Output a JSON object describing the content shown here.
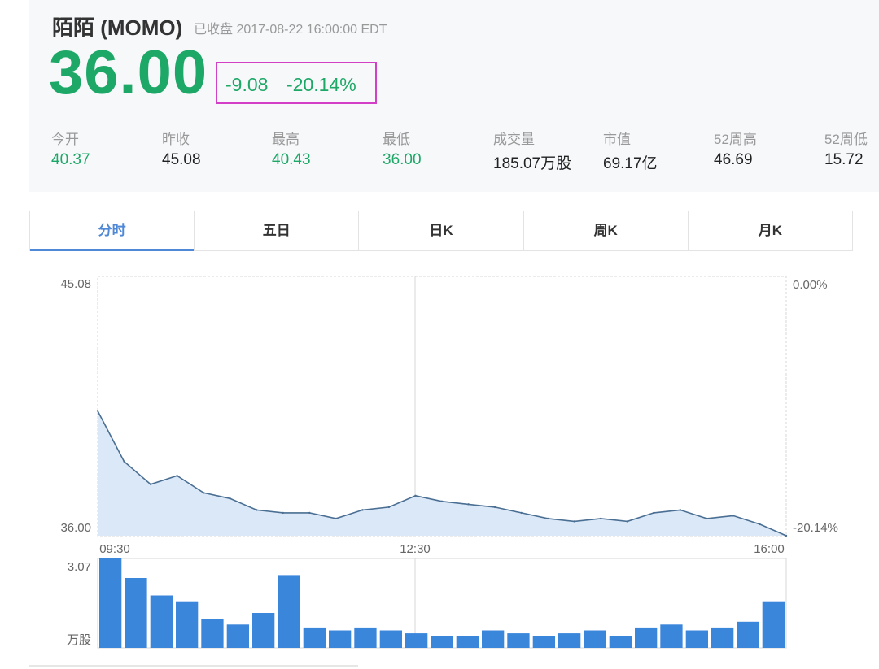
{
  "stock": {
    "name": "陌陌 (MOMO)",
    "status": "已收盘 2017-08-22  16:00:00  EDT",
    "price": "36.00",
    "change": "-9.08",
    "change_pct": "-20.14%"
  },
  "stats": [
    {
      "label": "今开",
      "value": "40.37",
      "color": "green"
    },
    {
      "label": "昨收",
      "value": "45.08",
      "color": "black"
    },
    {
      "label": "最高",
      "value": "40.43",
      "color": "green"
    },
    {
      "label": "最低",
      "value": "36.00",
      "color": "green"
    },
    {
      "label": "成交量",
      "value": "185.07万股",
      "color": "black"
    },
    {
      "label": "市值",
      "value": "69.17亿",
      "color": "black"
    },
    {
      "label": "52周高",
      "value": "46.69",
      "color": "black"
    },
    {
      "label": "52周低",
      "value": "15.72",
      "color": "black"
    }
  ],
  "tabs": [
    "分时",
    "五日",
    "日K",
    "周K",
    "月K"
  ],
  "active_tab": 0,
  "colors": {
    "green": "#1ea868",
    "accent": "#4f88d6",
    "line": "#4a6f93",
    "fill": "#dbe8f8",
    "volume": "#3a86db",
    "highlight_box": "#d33fc6"
  },
  "chart_data": [
    {
      "type": "line",
      "title": "",
      "x_ticks": [
        "09:30",
        "12:30",
        "16:00"
      ],
      "y_left_labels": [
        "45.08",
        "36.00"
      ],
      "y_right_labels": [
        "0.00%",
        "-20.14%"
      ],
      "ylim": [
        36.0,
        45.08
      ],
      "xlabel": "",
      "ylabel": "",
      "grid": "vertical at 12:30",
      "x": [
        "09:30",
        "09:45",
        "10:00",
        "10:15",
        "10:30",
        "10:45",
        "11:00",
        "11:15",
        "11:30",
        "11:45",
        "12:00",
        "12:15",
        "12:30",
        "12:45",
        "13:00",
        "13:15",
        "13:30",
        "13:45",
        "14:00",
        "14:15",
        "14:30",
        "14:45",
        "15:00",
        "15:15",
        "15:30",
        "15:45",
        "16:00"
      ],
      "y": [
        40.37,
        38.6,
        37.8,
        38.1,
        37.5,
        37.3,
        36.9,
        36.8,
        36.8,
        36.6,
        36.9,
        37.0,
        37.4,
        37.2,
        37.1,
        37.0,
        36.8,
        36.6,
        36.5,
        36.6,
        36.5,
        36.8,
        36.9,
        36.6,
        36.7,
        36.4,
        36.0
      ]
    },
    {
      "type": "bar",
      "title": "",
      "series_name": "成交量",
      "y_top_label": "3.07",
      "y_unit_label": "万股",
      "ylim": [
        0,
        3.07
      ],
      "x": [
        "09:30",
        "09:45",
        "10:00",
        "10:15",
        "10:30",
        "10:45",
        "11:00",
        "11:15",
        "11:30",
        "11:45",
        "12:00",
        "12:15",
        "12:30",
        "12:45",
        "13:00",
        "13:15",
        "13:30",
        "13:45",
        "14:00",
        "14:15",
        "14:30",
        "14:45",
        "15:00",
        "15:15",
        "15:30",
        "15:45",
        "16:00"
      ],
      "values": [
        3.07,
        2.4,
        1.8,
        1.6,
        1.0,
        0.8,
        1.2,
        2.5,
        0.7,
        0.6,
        0.7,
        0.6,
        0.5,
        0.4,
        0.4,
        0.6,
        0.5,
        0.4,
        0.5,
        0.6,
        0.4,
        0.7,
        0.8,
        0.6,
        0.7,
        0.9,
        1.6
      ]
    }
  ]
}
